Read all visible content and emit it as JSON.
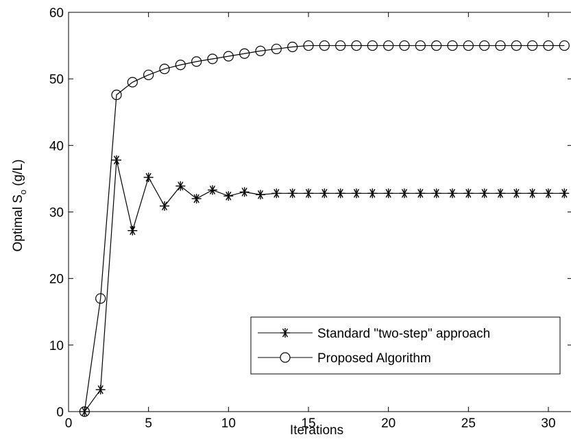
{
  "chart_data": {
    "type": "line",
    "xlabel": "Iterations",
    "ylabel": {
      "main": "Optimal S",
      "subscript": "o",
      "unit": " (g/L)"
    },
    "xlim": [
      0,
      31.5
    ],
    "ylim": [
      0,
      60
    ],
    "xticks": [
      0,
      5,
      10,
      15,
      20,
      25,
      30
    ],
    "yticks": [
      0,
      10,
      20,
      30,
      40,
      50,
      60
    ],
    "grid": false,
    "legend_position": "bottom-right",
    "series": [
      {
        "name": "Standard \"two-step\" approach",
        "marker": "asterisk",
        "color": "#000000",
        "x": [
          1,
          2,
          3,
          4,
          5,
          6,
          7,
          8,
          9,
          10,
          11,
          12,
          13,
          14,
          15,
          16,
          17,
          18,
          19,
          20,
          21,
          22,
          23,
          24,
          25,
          26,
          27,
          28,
          29,
          30,
          31
        ],
        "y": [
          0,
          3.3,
          37.8,
          27.2,
          35.2,
          30.9,
          33.9,
          32.0,
          33.3,
          32.4,
          33.0,
          32.6,
          32.8,
          32.8,
          32.8,
          32.8,
          32.8,
          32.8,
          32.8,
          32.8,
          32.8,
          32.8,
          32.8,
          32.8,
          32.8,
          32.8,
          32.8,
          32.8,
          32.8,
          32.8,
          32.8
        ]
      },
      {
        "name": "Proposed Algorithm",
        "marker": "circle",
        "color": "#000000",
        "x": [
          1,
          2,
          3,
          4,
          5,
          6,
          7,
          8,
          9,
          10,
          11,
          12,
          13,
          14,
          15,
          16,
          17,
          18,
          19,
          20,
          21,
          22,
          23,
          24,
          25,
          26,
          27,
          28,
          29,
          30,
          31
        ],
        "y": [
          0,
          17.0,
          47.6,
          49.5,
          50.6,
          51.5,
          52.1,
          52.6,
          53.0,
          53.4,
          53.8,
          54.2,
          54.5,
          54.8,
          55.0,
          55.0,
          55.0,
          55.0,
          55.0,
          55.0,
          55.0,
          55.0,
          55.0,
          55.0,
          55.0,
          55.0,
          55.0,
          55.0,
          55.0,
          55.0,
          55.0
        ]
      }
    ]
  }
}
